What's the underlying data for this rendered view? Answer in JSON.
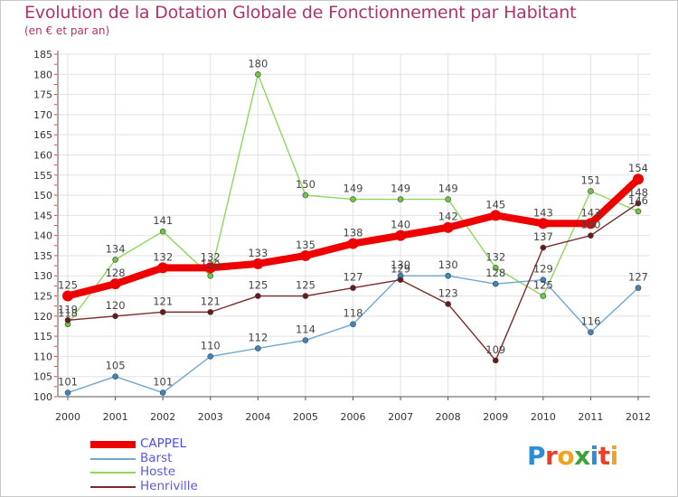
{
  "title": "Evolution de la Dotation Globale de Fonctionnement par Habitant",
  "subtitle": "(en € et par an)",
  "logo": {
    "letters": [
      {
        "char": "P",
        "color": "#2a8fd6"
      },
      {
        "char": "r",
        "color": "#e8402a"
      },
      {
        "char": "o",
        "color": "#f2a21c"
      },
      {
        "char": "x",
        "color": "#3aa33a"
      },
      {
        "char": "i",
        "color": "#2a8fd6"
      },
      {
        "char": "t",
        "color": "#e8402a"
      },
      {
        "char": "i",
        "color": "#f2a21c"
      }
    ]
  },
  "chart_data": {
    "type": "line",
    "title": "Evolution de la Dotation Globale de Fonctionnement par Habitant",
    "subtitle": "(en € et par an)",
    "x": [
      "2000",
      "2001",
      "2002",
      "2003",
      "2004",
      "2005",
      "2006",
      "2007",
      "2008",
      "2009",
      "2010",
      "2011",
      "2012"
    ],
    "ylim": [
      100,
      185
    ],
    "yticks": [
      100,
      105,
      110,
      115,
      120,
      125,
      130,
      135,
      140,
      145,
      150,
      155,
      160,
      165,
      170,
      175,
      180,
      185
    ],
    "legend_position": "bottom-left",
    "grid": true,
    "series": [
      {
        "name": "CAPPEL",
        "color": "#ee0000",
        "dot": "#ee0000",
        "values": [
          125,
          128,
          132,
          132,
          133,
          135,
          138,
          140,
          142,
          145,
          143,
          143,
          154
        ]
      },
      {
        "name": "Barst",
        "color": "#6fa7d0",
        "dot": "#3a86c0",
        "values": [
          101,
          105,
          101,
          110,
          112,
          114,
          118,
          130,
          130,
          128,
          129,
          116,
          127
        ]
      },
      {
        "name": "Hoste",
        "color": "#8fd65c",
        "dot": "#6cc83c",
        "values": [
          118,
          134,
          141,
          130,
          180,
          150,
          149,
          149,
          149,
          132,
          125,
          151,
          146
        ]
      },
      {
        "name": "Henriville",
        "color": "#7a2a2a",
        "dot": "#6a1818",
        "values": [
          119,
          120,
          121,
          121,
          125,
          125,
          127,
          129,
          123,
          109,
          137,
          140,
          148
        ]
      }
    ],
    "labels": {
      "CAPPEL": [
        "125",
        "128",
        "132",
        "132",
        "133",
        "135",
        "138",
        "140",
        "142",
        "145",
        "143",
        "143",
        "154"
      ],
      "Barst": [
        "101",
        "105",
        "101",
        "110",
        "112",
        "114",
        "118",
        "130",
        "130",
        "128",
        "129",
        "116",
        "127"
      ],
      "Hoste": [
        "118",
        "134",
        "141",
        "130",
        "180",
        "150",
        "149",
        "149",
        "149",
        "132",
        "125",
        "151",
        "146"
      ],
      "Henriville": [
        "119",
        "120",
        "121",
        "121",
        "125",
        "125",
        "127",
        "129",
        "123",
        "109",
        "137",
        "140",
        "148"
      ]
    }
  }
}
